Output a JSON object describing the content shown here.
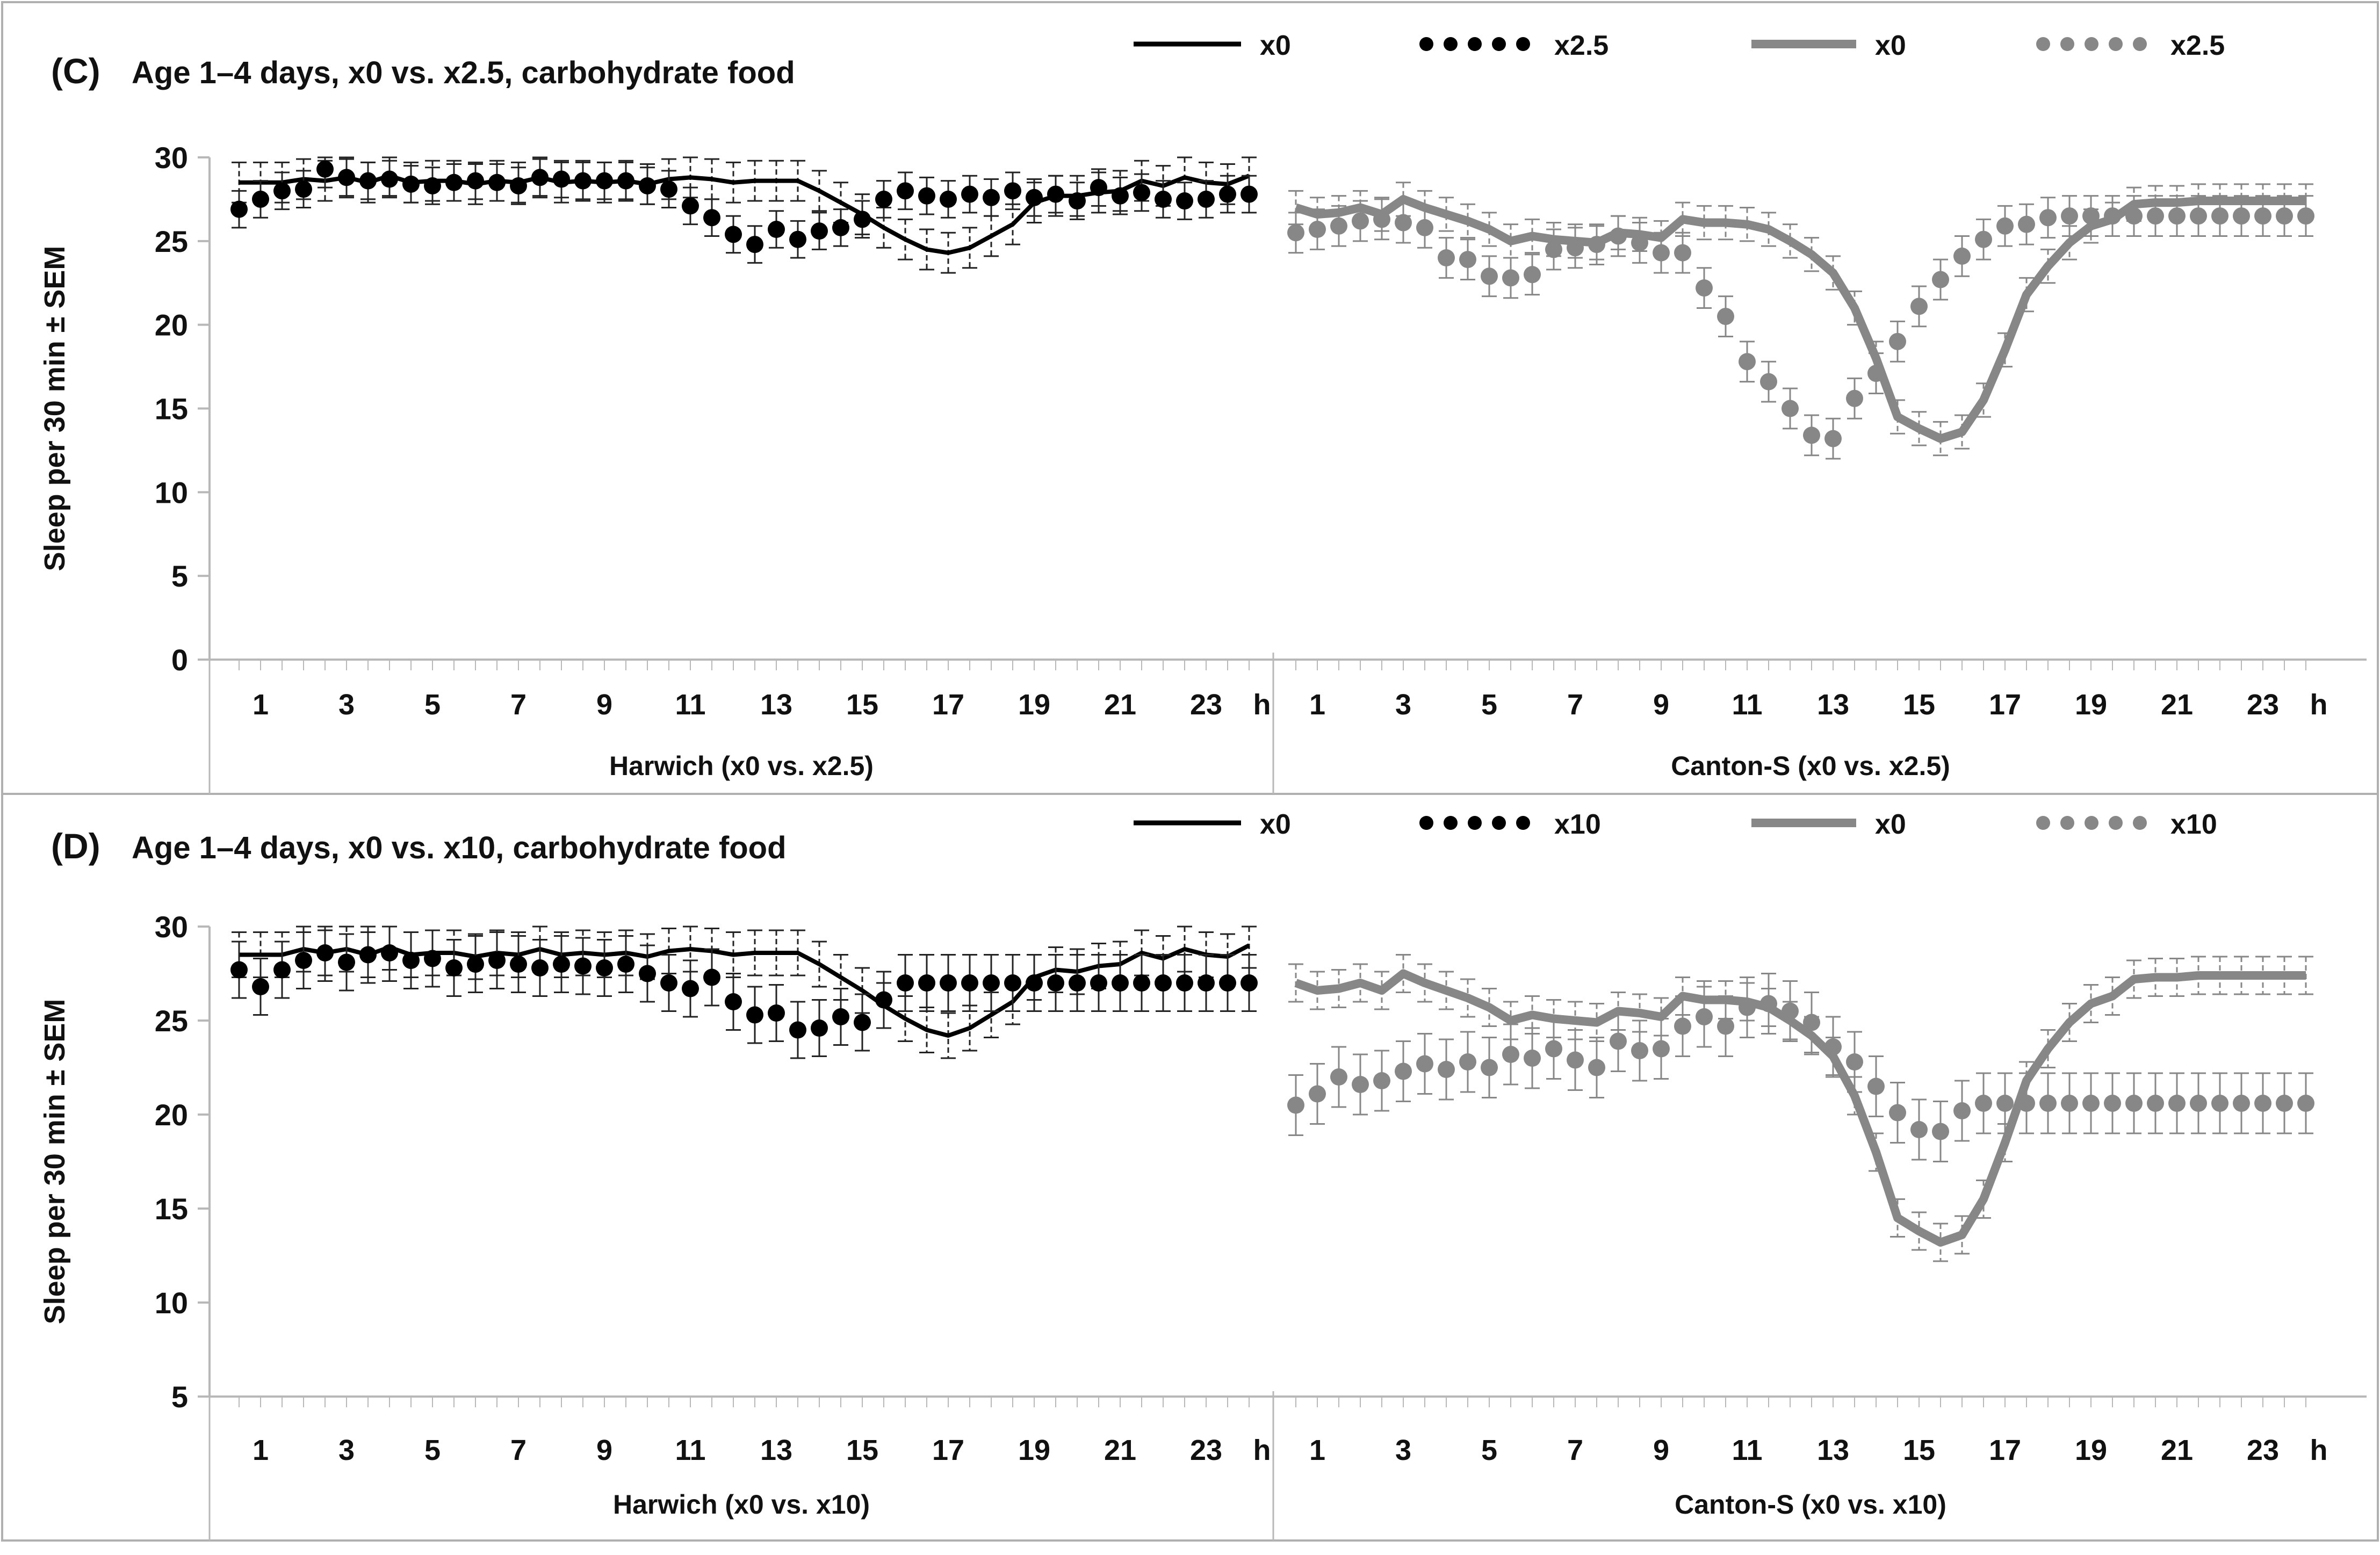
{
  "colors": {
    "harwich": "#000000",
    "canton": "#878787",
    "axis": "#b8b8b8",
    "errorbar": "#222222",
    "frame": "#b0b0b0"
  },
  "chart_data": [
    {
      "id": "C",
      "type": "line",
      "panel_label": "(C)",
      "title": "Age 1–4 days, x0 vs. x2.5, carbohydrate food",
      "ylabel": "Sleep per 30 min ± SEM",
      "ylim": [
        0,
        30
      ],
      "yticks": [
        "0",
        "5",
        "10",
        "15",
        "20",
        "25",
        "30"
      ],
      "xticks": [
        "1",
        "3",
        "5",
        "7",
        "9",
        "11",
        "13",
        "15",
        "17",
        "19",
        "21",
        "23"
      ],
      "x_unit": "h",
      "legend": [
        "x0",
        "x2.5",
        "x0",
        "x2.5"
      ],
      "groups": [
        {
          "name": "Harwich (x0 vs. x2.5)",
          "color_key": "harwich",
          "series": [
            {
              "name": "x0",
              "style": "line",
              "values": [
                28.5,
                28.5,
                28.5,
                28.7,
                28.6,
                28.8,
                28.5,
                28.9,
                28.5,
                28.6,
                28.6,
                28.4,
                28.6,
                28.5,
                28.8,
                28.5,
                28.6,
                28.5,
                28.6,
                28.4,
                28.7,
                28.8,
                28.7,
                28.5,
                28.6,
                28.6,
                28.6,
                28.0,
                27.3,
                26.6,
                25.8,
                25.1,
                24.5,
                24.3,
                24.6,
                25.3,
                26.0,
                27.3,
                27.7,
                27.7,
                27.9,
                28.0,
                28.6,
                28.3,
                28.8,
                28.5,
                28.4,
                28.9
              ],
              "sem": 1.2
            },
            {
              "name": "x2.5",
              "style": "dots",
              "values": [
                26.9,
                27.5,
                28.0,
                28.1,
                29.3,
                28.8,
                28.6,
                28.7,
                28.4,
                28.3,
                28.5,
                28.6,
                28.5,
                28.3,
                28.8,
                28.7,
                28.6,
                28.6,
                28.6,
                28.3,
                28.1,
                27.1,
                26.4,
                25.4,
                24.8,
                25.7,
                25.1,
                25.6,
                25.8,
                26.3,
                27.5,
                28.0,
                27.7,
                27.5,
                27.8,
                27.6,
                28.0,
                27.6,
                27.8,
                27.4,
                28.2,
                27.7,
                27.9,
                27.5,
                27.4,
                27.5,
                27.8,
                27.8
              ],
              "sem": 1.1
            }
          ]
        },
        {
          "name": "Canton-S (x0 vs. x2.5)",
          "color_key": "canton",
          "series": [
            {
              "name": "x0",
              "style": "line",
              "values": [
                27.0,
                26.6,
                26.7,
                27.0,
                26.6,
                27.5,
                27.0,
                26.6,
                26.2,
                25.7,
                25.0,
                25.3,
                25.1,
                25.0,
                24.9,
                25.5,
                25.4,
                25.2,
                26.3,
                26.1,
                26.1,
                26.0,
                25.7,
                25.0,
                24.2,
                23.1,
                21.0,
                18.0,
                14.5,
                13.8,
                13.2,
                13.6,
                15.5,
                18.5,
                21.8,
                23.5,
                24.9,
                25.9,
                26.3,
                27.2,
                27.3,
                27.3,
                27.4,
                27.4,
                27.4,
                27.4,
                27.4,
                27.4
              ],
              "sem": 1.0
            },
            {
              "name": "x2.5",
              "style": "dots",
              "values": [
                25.5,
                25.7,
                25.9,
                26.2,
                26.3,
                26.1,
                25.8,
                24.0,
                23.9,
                22.9,
                22.8,
                23.0,
                24.5,
                24.6,
                24.8,
                25.3,
                24.9,
                24.3,
                24.3,
                22.2,
                20.5,
                17.8,
                16.6,
                15.0,
                13.4,
                13.2,
                15.6,
                17.1,
                19.0,
                21.1,
                22.7,
                24.1,
                25.1,
                25.9,
                26.0,
                26.4,
                26.5,
                26.5,
                26.5,
                26.5,
                26.5,
                26.5,
                26.5,
                26.5,
                26.5,
                26.5,
                26.5,
                26.5
              ],
              "sem": 1.2
            }
          ]
        }
      ]
    },
    {
      "id": "D",
      "type": "line",
      "panel_label": "(D)",
      "title": "Age 1–4 days, x0 vs. x10, carbohydrate food",
      "ylabel": "Sleep per 30 min ± SEM",
      "ylim": [
        5,
        30
      ],
      "yticks": [
        "5",
        "10",
        "15",
        "20",
        "25",
        "30"
      ],
      "xticks": [
        "1",
        "3",
        "5",
        "7",
        "9",
        "11",
        "13",
        "15",
        "17",
        "19",
        "21",
        "23"
      ],
      "x_unit": "h",
      "legend": [
        "x0",
        "x10",
        "x0",
        "x10"
      ],
      "groups": [
        {
          "name": "Harwich (x0 vs. x10)",
          "color_key": "harwich",
          "series": [
            {
              "name": "x0",
              "style": "line",
              "values": [
                28.5,
                28.5,
                28.5,
                28.8,
                28.6,
                28.8,
                28.5,
                28.9,
                28.5,
                28.6,
                28.6,
                28.4,
                28.6,
                28.5,
                28.8,
                28.5,
                28.6,
                28.5,
                28.6,
                28.4,
                28.7,
                28.8,
                28.7,
                28.5,
                28.6,
                28.6,
                28.6,
                28.0,
                27.3,
                26.6,
                25.8,
                25.1,
                24.5,
                24.2,
                24.6,
                25.3,
                26.0,
                27.3,
                27.7,
                27.6,
                27.9,
                28.0,
                28.6,
                28.3,
                28.8,
                28.5,
                28.4,
                29.0
              ],
              "sem": 1.2
            },
            {
              "name": "x10",
              "style": "dots",
              "values": [
                27.7,
                26.8,
                27.7,
                28.2,
                28.6,
                28.1,
                28.5,
                28.6,
                28.2,
                28.3,
                27.8,
                28.0,
                28.2,
                28.0,
                27.8,
                28.0,
                27.9,
                27.8,
                28.0,
                27.5,
                27.0,
                26.7,
                27.3,
                26.0,
                25.3,
                25.4,
                24.5,
                24.6,
                25.2,
                24.9,
                26.1,
                27.0,
                27.0,
                27.0,
                27.0,
                27.0,
                27.0,
                27.0,
                27.0,
                27.0,
                27.0,
                27.0,
                27.0,
                27.0,
                27.0,
                27.0,
                27.0,
                27.0
              ],
              "sem": 1.5
            }
          ]
        },
        {
          "name": "Canton-S (x0 vs. x10)",
          "color_key": "canton",
          "series": [
            {
              "name": "x0",
              "style": "line",
              "values": [
                27.0,
                26.6,
                26.7,
                27.0,
                26.6,
                27.5,
                27.0,
                26.6,
                26.2,
                25.7,
                25.0,
                25.3,
                25.1,
                25.0,
                24.9,
                25.5,
                25.4,
                25.2,
                26.3,
                26.1,
                26.1,
                26.0,
                25.7,
                25.0,
                24.2,
                23.1,
                21.0,
                18.0,
                14.5,
                13.8,
                13.2,
                13.6,
                15.5,
                18.5,
                21.8,
                23.5,
                24.9,
                25.9,
                26.3,
                27.2,
                27.3,
                27.3,
                27.4,
                27.4,
                27.4,
                27.4,
                27.4,
                27.4
              ],
              "sem": 1.0
            },
            {
              "name": "x10",
              "style": "dots",
              "values": [
                20.5,
                21.1,
                22.0,
                21.6,
                21.8,
                22.3,
                22.7,
                22.4,
                22.8,
                22.5,
                23.2,
                23.0,
                23.5,
                22.9,
                22.5,
                23.9,
                23.4,
                23.5,
                24.7,
                25.2,
                24.7,
                25.7,
                25.9,
                25.5,
                24.9,
                23.6,
                22.8,
                21.5,
                20.1,
                19.2,
                19.1,
                20.2,
                20.6,
                20.6,
                20.6,
                20.6,
                20.6,
                20.6,
                20.6,
                20.6,
                20.6,
                20.6,
                20.6,
                20.6,
                20.6,
                20.6,
                20.6,
                20.6
              ],
              "sem": 1.6
            }
          ]
        }
      ]
    }
  ]
}
